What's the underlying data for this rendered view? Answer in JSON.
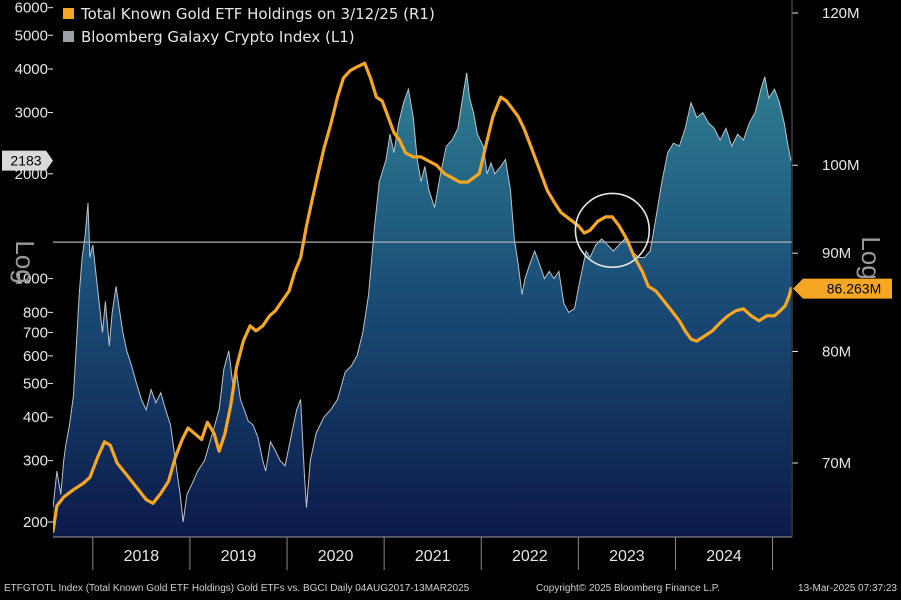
{
  "chart_data": {
    "type": "area",
    "legend": [
      {
        "label": "Total Known Gold ETF Holdings on 3/12/25 (R1)",
        "color": "#f5a623"
      },
      {
        "label": "Bloomberg Galaxy Crypto Index (L1)",
        "color": "#9aa0a6"
      }
    ],
    "legend_position": "top-left",
    "left_axis": {
      "scale": "log",
      "label": "Log",
      "range": [
        180,
        6200
      ],
      "ticks": [
        {
          "value": 200,
          "label": "200"
        },
        {
          "value": 300,
          "label": "300"
        },
        {
          "value": 400,
          "label": "400"
        },
        {
          "value": 500,
          "label": "500"
        },
        {
          "value": 600,
          "label": "600"
        },
        {
          "value": 700,
          "label": "700"
        },
        {
          "value": 800,
          "label": "800"
        },
        {
          "value": 1000,
          "label": "1000"
        },
        {
          "value": 2000,
          "label": "2000"
        },
        {
          "value": 3000,
          "label": "3000"
        },
        {
          "value": 4000,
          "label": "4000"
        },
        {
          "value": 5000,
          "label": "5000"
        },
        {
          "value": 6000,
          "label": "6000"
        }
      ],
      "current_value_label": "2183",
      "current_value": 2183
    },
    "right_axis": {
      "scale": "log",
      "label": "Log",
      "unit": "M",
      "range": [
        63.5,
        123
      ],
      "ticks": [
        {
          "value": 70,
          "label": "70M"
        },
        {
          "value": 80,
          "label": "80M"
        },
        {
          "value": 90,
          "label": "90M"
        },
        {
          "value": 100,
          "label": "100M"
        },
        {
          "value": 120,
          "label": "120M"
        }
      ],
      "current_value_label": "86.263M",
      "current_value": 86.263
    },
    "x_axis": {
      "range": [
        2017.59,
        2025.2
      ],
      "labels": [
        "2018",
        "2019",
        "2020",
        "2021",
        "2022",
        "2023",
        "2024"
      ],
      "year_boundaries": [
        2018,
        2019,
        2020,
        2021,
        2022,
        2023,
        2024,
        2025
      ]
    },
    "reference_line": {
      "axis": "right",
      "value": 91.2,
      "color": "#b0b0b0"
    },
    "annotation": {
      "type": "circle",
      "x": 2023.35,
      "y_right": 92.5,
      "radius_years": 0.38,
      "color": "#e6e6e6"
    },
    "series": [
      {
        "name": "Bloomberg Galaxy Crypto Index (L1)",
        "axis": "left",
        "style": "area",
        "points": [
          [
            2017.59,
            220
          ],
          [
            2017.63,
            280
          ],
          [
            2017.67,
            240
          ],
          [
            2017.7,
            300
          ],
          [
            2017.72,
            330
          ],
          [
            2017.76,
            380
          ],
          [
            2017.8,
            460
          ],
          [
            2017.83,
            640
          ],
          [
            2017.86,
            900
          ],
          [
            2017.89,
            1150
          ],
          [
            2017.92,
            1320
          ],
          [
            2017.95,
            1650
          ],
          [
            2017.97,
            1150
          ],
          [
            2018.0,
            1250
          ],
          [
            2018.03,
            1050
          ],
          [
            2018.07,
            830
          ],
          [
            2018.1,
            700
          ],
          [
            2018.13,
            860
          ],
          [
            2018.17,
            640
          ],
          [
            2018.2,
            800
          ],
          [
            2018.24,
            950
          ],
          [
            2018.27,
            830
          ],
          [
            2018.31,
            700
          ],
          [
            2018.35,
            620
          ],
          [
            2018.4,
            560
          ],
          [
            2018.45,
            500
          ],
          [
            2018.5,
            450
          ],
          [
            2018.55,
            420
          ],
          [
            2018.6,
            480
          ],
          [
            2018.65,
            440
          ],
          [
            2018.7,
            470
          ],
          [
            2018.75,
            420
          ],
          [
            2018.8,
            380
          ],
          [
            2018.85,
            300
          ],
          [
            2018.9,
            240
          ],
          [
            2018.93,
            200
          ],
          [
            2018.97,
            240
          ],
          [
            2019.03,
            260
          ],
          [
            2019.08,
            280
          ],
          [
            2019.15,
            300
          ],
          [
            2019.22,
            350
          ],
          [
            2019.3,
            420
          ],
          [
            2019.35,
            550
          ],
          [
            2019.4,
            620
          ],
          [
            2019.44,
            500
          ],
          [
            2019.48,
            540
          ],
          [
            2019.52,
            450
          ],
          [
            2019.56,
            420
          ],
          [
            2019.6,
            390
          ],
          [
            2019.65,
            380
          ],
          [
            2019.7,
            350
          ],
          [
            2019.75,
            300
          ],
          [
            2019.78,
            280
          ],
          [
            2019.83,
            340
          ],
          [
            2019.88,
            320
          ],
          [
            2019.93,
            300
          ],
          [
            2019.98,
            290
          ],
          [
            2020.04,
            350
          ],
          [
            2020.1,
            420
          ],
          [
            2020.14,
            450
          ],
          [
            2020.18,
            270
          ],
          [
            2020.2,
            220
          ],
          [
            2020.24,
            300
          ],
          [
            2020.3,
            360
          ],
          [
            2020.38,
            400
          ],
          [
            2020.45,
            420
          ],
          [
            2020.52,
            450
          ],
          [
            2020.6,
            540
          ],
          [
            2020.66,
            560
          ],
          [
            2020.72,
            600
          ],
          [
            2020.78,
            700
          ],
          [
            2020.84,
            900
          ],
          [
            2020.9,
            1400
          ],
          [
            2020.95,
            1900
          ],
          [
            2021.02,
            2200
          ],
          [
            2021.06,
            2600
          ],
          [
            2021.1,
            2300
          ],
          [
            2021.15,
            2800
          ],
          [
            2021.2,
            3200
          ],
          [
            2021.25,
            3500
          ],
          [
            2021.3,
            2900
          ],
          [
            2021.34,
            2200
          ],
          [
            2021.38,
            1900
          ],
          [
            2021.42,
            2100
          ],
          [
            2021.46,
            1800
          ],
          [
            2021.52,
            1600
          ],
          [
            2021.58,
            2000
          ],
          [
            2021.64,
            2400
          ],
          [
            2021.7,
            2500
          ],
          [
            2021.76,
            2700
          ],
          [
            2021.8,
            3200
          ],
          [
            2021.85,
            3900
          ],
          [
            2021.88,
            3300
          ],
          [
            2021.92,
            3000
          ],
          [
            2021.96,
            2600
          ],
          [
            2022.02,
            2400
          ],
          [
            2022.06,
            2000
          ],
          [
            2022.1,
            2150
          ],
          [
            2022.14,
            2000
          ],
          [
            2022.2,
            2100
          ],
          [
            2022.25,
            2200
          ],
          [
            2022.3,
            1800
          ],
          [
            2022.34,
            1300
          ],
          [
            2022.38,
            1100
          ],
          [
            2022.42,
            900
          ],
          [
            2022.45,
            1000
          ],
          [
            2022.5,
            1100
          ],
          [
            2022.55,
            1200
          ],
          [
            2022.6,
            1100
          ],
          [
            2022.65,
            1000
          ],
          [
            2022.7,
            1050
          ],
          [
            2022.75,
            1000
          ],
          [
            2022.8,
            1050
          ],
          [
            2022.85,
            850
          ],
          [
            2022.9,
            800
          ],
          [
            2022.96,
            820
          ],
          [
            2023.02,
            1000
          ],
          [
            2023.08,
            1200
          ],
          [
            2023.12,
            1150
          ],
          [
            2023.18,
            1250
          ],
          [
            2023.24,
            1300
          ],
          [
            2023.3,
            1250
          ],
          [
            2023.36,
            1200
          ],
          [
            2023.42,
            1250
          ],
          [
            2023.48,
            1300
          ],
          [
            2023.55,
            1200
          ],
          [
            2023.62,
            1150
          ],
          [
            2023.68,
            1150
          ],
          [
            2023.74,
            1200
          ],
          [
            2023.8,
            1500
          ],
          [
            2023.86,
            1900
          ],
          [
            2023.92,
            2300
          ],
          [
            2023.98,
            2450
          ],
          [
            2024.04,
            2400
          ],
          [
            2024.1,
            2700
          ],
          [
            2024.16,
            3200
          ],
          [
            2024.22,
            2900
          ],
          [
            2024.28,
            3000
          ],
          [
            2024.34,
            2800
          ],
          [
            2024.4,
            2700
          ],
          [
            2024.46,
            2500
          ],
          [
            2024.52,
            2700
          ],
          [
            2024.58,
            2400
          ],
          [
            2024.64,
            2600
          ],
          [
            2024.7,
            2500
          ],
          [
            2024.76,
            2800
          ],
          [
            2024.82,
            3000
          ],
          [
            2024.88,
            3500
          ],
          [
            2024.92,
            3800
          ],
          [
            2024.96,
            3300
          ],
          [
            2025.02,
            3500
          ],
          [
            2025.07,
            3200
          ],
          [
            2025.12,
            2800
          ],
          [
            2025.16,
            2400
          ],
          [
            2025.19,
            2183
          ]
        ]
      },
      {
        "name": "Total Known Gold ETF Holdings on 3/12/25 (R1)",
        "axis": "right",
        "style": "line",
        "points": [
          [
            2017.59,
            64.5
          ],
          [
            2017.63,
            66.5
          ],
          [
            2017.7,
            67.2
          ],
          [
            2017.8,
            67.8
          ],
          [
            2017.9,
            68.3
          ],
          [
            2017.97,
            68.8
          ],
          [
            2018.05,
            70.5
          ],
          [
            2018.12,
            71.8
          ],
          [
            2018.18,
            71.5
          ],
          [
            2018.25,
            70.0
          ],
          [
            2018.35,
            69.0
          ],
          [
            2018.45,
            68.0
          ],
          [
            2018.55,
            67.0
          ],
          [
            2018.62,
            66.7
          ],
          [
            2018.7,
            67.5
          ],
          [
            2018.78,
            68.5
          ],
          [
            2018.85,
            70.5
          ],
          [
            2018.92,
            72.0
          ],
          [
            2018.98,
            73.0
          ],
          [
            2019.05,
            72.5
          ],
          [
            2019.12,
            72.0
          ],
          [
            2019.18,
            73.5
          ],
          [
            2019.25,
            72.5
          ],
          [
            2019.3,
            71.0
          ],
          [
            2019.36,
            72.5
          ],
          [
            2019.42,
            75.0
          ],
          [
            2019.48,
            78.5
          ],
          [
            2019.55,
            81.0
          ],
          [
            2019.62,
            82.5
          ],
          [
            2019.68,
            82.0
          ],
          [
            2019.75,
            82.5
          ],
          [
            2019.82,
            83.5
          ],
          [
            2019.88,
            84.0
          ],
          [
            2019.95,
            85.0
          ],
          [
            2020.02,
            86.0
          ],
          [
            2020.08,
            88.0
          ],
          [
            2020.14,
            89.5
          ],
          [
            2020.2,
            93.0
          ],
          [
            2020.26,
            96.0
          ],
          [
            2020.32,
            99.0
          ],
          [
            2020.38,
            102.0
          ],
          [
            2020.45,
            105.0
          ],
          [
            2020.52,
            108.5
          ],
          [
            2020.58,
            111.0
          ],
          [
            2020.65,
            112.0
          ],
          [
            2020.72,
            112.5
          ],
          [
            2020.8,
            113.0
          ],
          [
            2020.86,
            111.0
          ],
          [
            2020.92,
            108.5
          ],
          [
            2020.98,
            108.0
          ],
          [
            2021.04,
            106.0
          ],
          [
            2021.1,
            104.0
          ],
          [
            2021.16,
            103.0
          ],
          [
            2021.22,
            101.5
          ],
          [
            2021.3,
            101.0
          ],
          [
            2021.38,
            101.0
          ],
          [
            2021.46,
            100.5
          ],
          [
            2021.54,
            100.0
          ],
          [
            2021.62,
            99.0
          ],
          [
            2021.7,
            98.5
          ],
          [
            2021.78,
            98.0
          ],
          [
            2021.86,
            98.0
          ],
          [
            2021.92,
            98.5
          ],
          [
            2021.98,
            99.0
          ],
          [
            2022.05,
            102.5
          ],
          [
            2022.12,
            106.0
          ],
          [
            2022.2,
            108.5
          ],
          [
            2022.26,
            108.0
          ],
          [
            2022.32,
            107.0
          ],
          [
            2022.38,
            106.0
          ],
          [
            2022.44,
            104.5
          ],
          [
            2022.52,
            102.0
          ],
          [
            2022.6,
            99.5
          ],
          [
            2022.68,
            97.0
          ],
          [
            2022.76,
            95.5
          ],
          [
            2022.82,
            94.5
          ],
          [
            2022.88,
            94.0
          ],
          [
            2022.94,
            93.5
          ],
          [
            2023.0,
            93.0
          ],
          [
            2023.06,
            92.2
          ],
          [
            2023.12,
            92.5
          ],
          [
            2023.2,
            93.5
          ],
          [
            2023.28,
            94.0
          ],
          [
            2023.35,
            94.0
          ],
          [
            2023.42,
            93.0
          ],
          [
            2023.5,
            91.5
          ],
          [
            2023.58,
            89.5
          ],
          [
            2023.66,
            88.0
          ],
          [
            2023.72,
            86.5
          ],
          [
            2023.8,
            86.0
          ],
          [
            2023.88,
            85.0
          ],
          [
            2023.96,
            84.0
          ],
          [
            2024.04,
            83.0
          ],
          [
            2024.1,
            82.0
          ],
          [
            2024.16,
            81.2
          ],
          [
            2024.22,
            81.0
          ],
          [
            2024.3,
            81.5
          ],
          [
            2024.38,
            82.0
          ],
          [
            2024.46,
            82.8
          ],
          [
            2024.54,
            83.5
          ],
          [
            2024.62,
            84.0
          ],
          [
            2024.7,
            84.2
          ],
          [
            2024.78,
            83.5
          ],
          [
            2024.86,
            83.0
          ],
          [
            2024.94,
            83.5
          ],
          [
            2025.02,
            83.5
          ],
          [
            2025.08,
            84.0
          ],
          [
            2025.13,
            84.5
          ],
          [
            2025.17,
            85.5
          ],
          [
            2025.19,
            86.263
          ]
        ]
      }
    ],
    "footer": {
      "left": "ETFGTOTL Index (Total Known Gold ETF Holdings) Gold ETFs vs. BGCI  Daily 04AUG2017-13MAR2025",
      "center": "Copyright© 2025 Bloomberg Finance L.P.",
      "right": "13-Mar-2025 07:37:23"
    }
  }
}
